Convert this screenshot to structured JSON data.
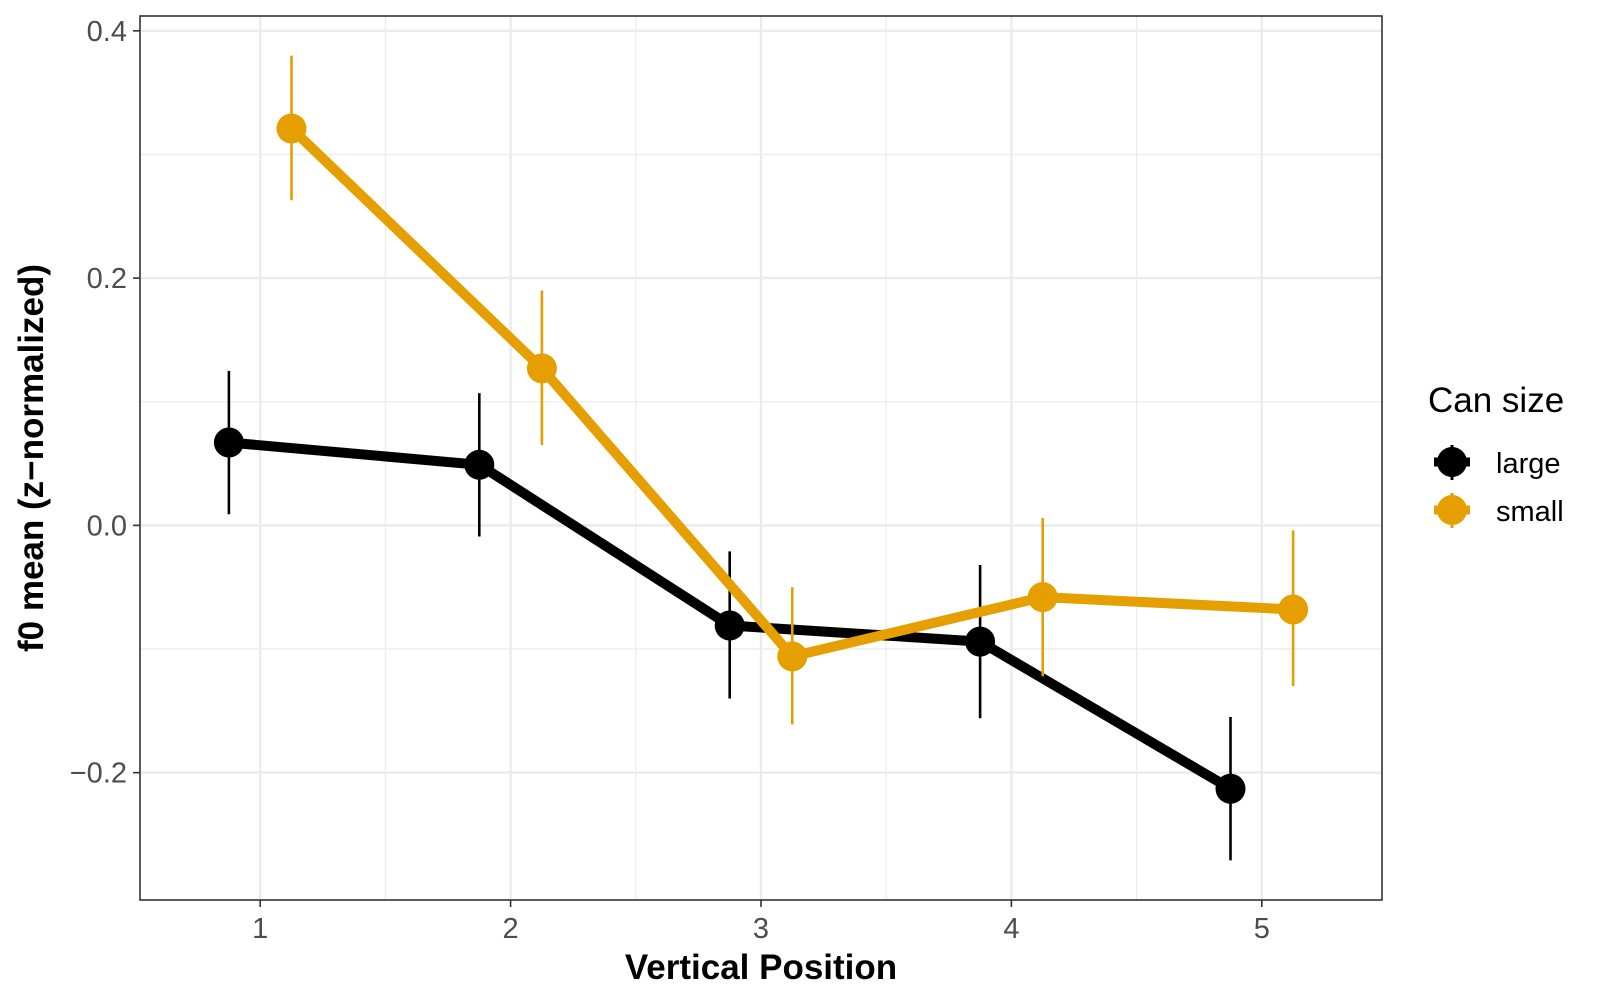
{
  "chart_data": {
    "type": "line",
    "xlabel": "Vertical Position",
    "ylabel": "f0 mean (z−normalized)",
    "xlim": [
      0.52,
      5.48
    ],
    "ylim": [
      -0.303,
      0.412
    ],
    "x_ticks": [
      1,
      2,
      3,
      4,
      5
    ],
    "x_tick_labels": [
      "1",
      "2",
      "3",
      "4",
      "5"
    ],
    "y_ticks": [
      0.4,
      0.2,
      0.0,
      -0.2
    ],
    "y_tick_labels": [
      "0.4",
      "0.2",
      "0.0",
      "−0.2"
    ],
    "grid": true,
    "legend": {
      "title": "Can size",
      "position": "right"
    },
    "dodge": 0.125,
    "series": [
      {
        "name": "large",
        "color": "#000000",
        "x": [
          1,
          2,
          3,
          4,
          5
        ],
        "y": [
          0.067,
          0.049,
          -0.081,
          -0.094,
          -0.213
        ],
        "ci_low": [
          0.009,
          -0.009,
          -0.14,
          -0.156,
          -0.271
        ],
        "ci_high": [
          0.125,
          0.107,
          -0.021,
          -0.032,
          -0.155
        ]
      },
      {
        "name": "small",
        "color": "#E69F00",
        "x": [
          1,
          2,
          3,
          4,
          5
        ],
        "y": [
          0.321,
          0.127,
          -0.106,
          -0.058,
          -0.068
        ],
        "ci_low": [
          0.263,
          0.065,
          -0.161,
          -0.122,
          -0.13
        ],
        "ci_high": [
          0.38,
          0.19,
          -0.05,
          0.006,
          -0.004
        ]
      }
    ]
  }
}
